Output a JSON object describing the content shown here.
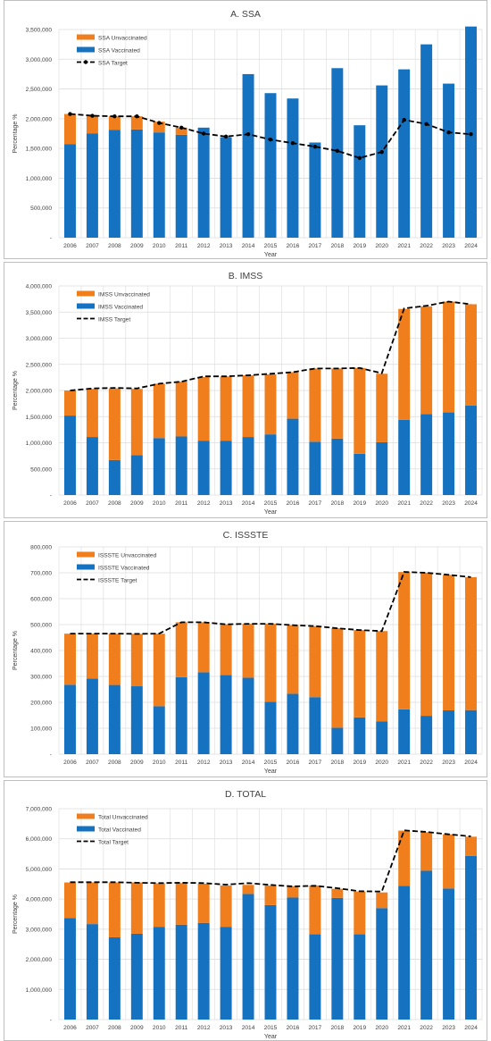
{
  "years": [
    "2006",
    "2007",
    "2008",
    "2009",
    "2010",
    "2011",
    "2012",
    "2013",
    "2014",
    "2015",
    "2016",
    "2017",
    "2018",
    "2019",
    "2020",
    "2021",
    "2022",
    "2023",
    "2024"
  ],
  "colors": {
    "unvaccinated": "#f07e1c",
    "vaccinated": "#1572c0",
    "target": "#000000",
    "grid": "#dcdcdc",
    "border": "#bfbfbf",
    "text": "#404040"
  },
  "chart_data": [
    {
      "type": "bar",
      "stacked": true,
      "title": "A. SSA",
      "xlabel": "Year",
      "ylabel": "Percentage %",
      "ylim": [
        0,
        3500000
      ],
      "yticks": [
        "-",
        "500,000",
        "1,000,000",
        "1,500,000",
        "2,000,000",
        "2,500,000",
        "3,000,000",
        "3,500,000"
      ],
      "legend_position": "top-left",
      "grid": true,
      "target_markers": true,
      "categories": [
        "2006",
        "2007",
        "2008",
        "2009",
        "2010",
        "2011",
        "2012",
        "2013",
        "2014",
        "2015",
        "2016",
        "2017",
        "2018",
        "2019",
        "2020",
        "2021",
        "2022",
        "2023",
        "2024"
      ],
      "series": [
        {
          "name": "SSA Unvaccinated",
          "kind": "bar",
          "values": [
            510000,
            300000,
            230000,
            220000,
            180000,
            120000,
            0,
            0,
            0,
            0,
            0,
            0,
            0,
            0,
            0,
            0,
            0,
            0,
            0
          ]
        },
        {
          "name": "SSA Vaccinated",
          "kind": "bar",
          "values": [
            1570000,
            1750000,
            1810000,
            1820000,
            1770000,
            1730000,
            1850000,
            1690000,
            2750000,
            2430000,
            2340000,
            1600000,
            2850000,
            1890000,
            2560000,
            2830000,
            3250000,
            2590000,
            3550000
          ]
        },
        {
          "name": "SSA Target",
          "kind": "line",
          "values": [
            2080000,
            2050000,
            2040000,
            2040000,
            1930000,
            1850000,
            1750000,
            1700000,
            1740000,
            1650000,
            1590000,
            1530000,
            1460000,
            1340000,
            1440000,
            1980000,
            1910000,
            1770000,
            1740000
          ]
        }
      ]
    },
    {
      "type": "bar",
      "stacked": true,
      "title": "B. IMSS",
      "xlabel": "Year",
      "ylabel": "Percentage %",
      "ylim": [
        0,
        4000000
      ],
      "yticks": [
        "-",
        "500,000",
        "1,000,000",
        "1,500,000",
        "2,000,000",
        "2,500,000",
        "3,000,000",
        "3,500,000",
        "4,000,000"
      ],
      "legend_position": "top-left",
      "grid": true,
      "target_markers": false,
      "categories": [
        "2006",
        "2007",
        "2008",
        "2009",
        "2010",
        "2011",
        "2012",
        "2013",
        "2014",
        "2015",
        "2016",
        "2017",
        "2018",
        "2019",
        "2020",
        "2021",
        "2022",
        "2023",
        "2024"
      ],
      "series": [
        {
          "name": "IMSS Unvaccinated",
          "kind": "bar",
          "values": [
            480000,
            920000,
            1370000,
            1270000,
            1040000,
            1050000,
            1220000,
            1230000,
            1180000,
            1150000,
            890000,
            1400000,
            1340000,
            1640000,
            1310000,
            2120000,
            2060000,
            2120000,
            1940000
          ]
        },
        {
          "name": "IMSS Vaccinated",
          "kind": "bar",
          "values": [
            1520000,
            1110000,
            670000,
            760000,
            1090000,
            1120000,
            1040000,
            1040000,
            1110000,
            1160000,
            1460000,
            1020000,
            1080000,
            790000,
            1010000,
            1440000,
            1550000,
            1580000,
            1710000
          ]
        },
        {
          "name": "IMSS Target",
          "kind": "line",
          "values": [
            2000000,
            2040000,
            2050000,
            2040000,
            2130000,
            2170000,
            2270000,
            2270000,
            2290000,
            2320000,
            2350000,
            2420000,
            2420000,
            2430000,
            2330000,
            3570000,
            3620000,
            3700000,
            3650000
          ]
        }
      ]
    },
    {
      "type": "bar",
      "stacked": true,
      "title": "C. ISSSTE",
      "xlabel": "Year",
      "ylabel": "Percentage %",
      "ylim": [
        0,
        800000
      ],
      "yticks": [
        "-",
        "100,000",
        "200,000",
        "300,000",
        "400,000",
        "500,000",
        "600,000",
        "700,000",
        "800,000"
      ],
      "legend_position": "top-left",
      "grid": true,
      "target_markers": false,
      "categories": [
        "2006",
        "2007",
        "2008",
        "2009",
        "2010",
        "2011",
        "2012",
        "2013",
        "2014",
        "2015",
        "2016",
        "2017",
        "2018",
        "2019",
        "2020",
        "2021",
        "2022",
        "2023",
        "2024"
      ],
      "series": [
        {
          "name": "ISSSTE Unvaccinated",
          "kind": "bar",
          "values": [
            197000,
            173000,
            198000,
            202000,
            280000,
            212000,
            193000,
            196000,
            208000,
            301000,
            265000,
            274000,
            384000,
            337000,
            349000,
            530000,
            552000,
            523000,
            513000
          ]
        },
        {
          "name": "ISSSTE Vaccinated",
          "kind": "bar",
          "values": [
            268000,
            292000,
            267000,
            262000,
            185000,
            297000,
            316000,
            305000,
            295000,
            202000,
            233000,
            220000,
            102000,
            142000,
            126000,
            173000,
            148000,
            169000,
            170000
          ]
        },
        {
          "name": "ISSSTE Target",
          "kind": "line",
          "values": [
            465000,
            465000,
            465000,
            464000,
            465000,
            509000,
            509000,
            501000,
            503000,
            503000,
            498000,
            494000,
            486000,
            479000,
            475000,
            703000,
            700000,
            692000,
            683000
          ]
        }
      ]
    },
    {
      "type": "bar",
      "stacked": true,
      "title": "D. TOTAL",
      "xlabel": "Year",
      "ylabel": "Percentage %",
      "ylim": [
        0,
        7000000
      ],
      "yticks": [
        "-",
        "1,000,000",
        "2,000,000",
        "3,000,000",
        "4,000,000",
        "5,000,000",
        "6,000,000",
        "7,000,000"
      ],
      "legend_position": "top-left",
      "grid": true,
      "target_markers": false,
      "categories": [
        "2006",
        "2007",
        "2008",
        "2009",
        "2010",
        "2011",
        "2012",
        "2013",
        "2014",
        "2015",
        "2016",
        "2017",
        "2018",
        "2019",
        "2020",
        "2021",
        "2022",
        "2023",
        "2024"
      ],
      "series": [
        {
          "name": "Total Unvaccinated",
          "kind": "bar",
          "values": [
            1180000,
            1380000,
            1820000,
            1700000,
            1450000,
            1380000,
            1300000,
            1380000,
            300000,
            650000,
            380000,
            1620000,
            300000,
            1420000,
            520000,
            1830000,
            1280000,
            1800000,
            640000
          ]
        },
        {
          "name": "Total Vaccinated",
          "kind": "bar",
          "values": [
            3370000,
            3170000,
            2730000,
            2850000,
            3070000,
            3150000,
            3210000,
            3070000,
            4170000,
            3800000,
            4050000,
            2830000,
            4040000,
            2830000,
            3700000,
            4440000,
            4940000,
            4350000,
            5430000
          ]
        },
        {
          "name": "Total Target",
          "kind": "line",
          "values": [
            4560000,
            4560000,
            4560000,
            4540000,
            4530000,
            4540000,
            4530000,
            4480000,
            4530000,
            4470000,
            4420000,
            4440000,
            4360000,
            4260000,
            4250000,
            6280000,
            6230000,
            6150000,
            6080000
          ]
        }
      ]
    }
  ]
}
